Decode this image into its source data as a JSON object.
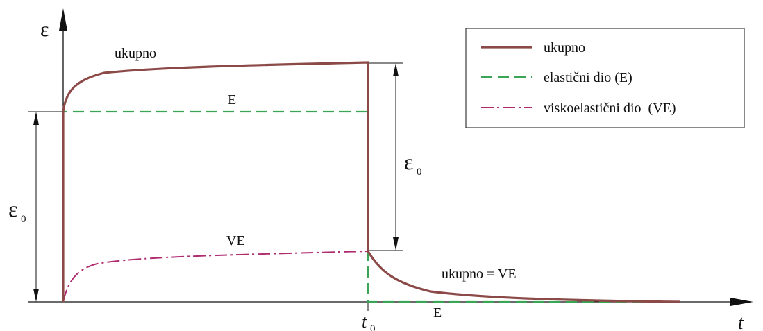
{
  "axes": {
    "y_symbol": "ε",
    "x_symbol": "t"
  },
  "ticks": {
    "t0_main": "t",
    "t0_sub": "0"
  },
  "dimensions": {
    "left_main": "ε",
    "left_sub": "0",
    "right_main": "ε",
    "right_sub": "0"
  },
  "labels": {
    "total": "ukupno",
    "elastic": "E",
    "viscoelastic": "VE",
    "recovery": "ukupno = VE",
    "elastic_after": "E"
  },
  "legend": {
    "items": [
      {
        "label": "ukupno",
        "color": "#8b4a47",
        "style": "solid"
      },
      {
        "label": "elastični dio (E)",
        "color": "#3aa655",
        "style": "dashed"
      },
      {
        "label": "viskoelastični dio  (VE)",
        "color": "#b02a6e",
        "style": "dash-dot"
      }
    ]
  },
  "colors": {
    "total": "#8b4a47",
    "elastic": "#3aa655",
    "viscoelastic": "#b02a6e",
    "axis": "#111111"
  }
}
